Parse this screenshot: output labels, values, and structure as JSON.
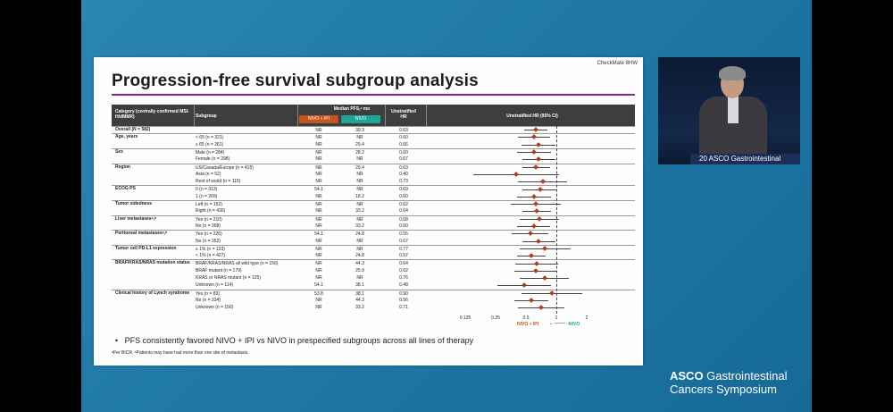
{
  "slide": {
    "badge": "CheckMate 8HW",
    "title": "Progression-free survival subgroup analysis",
    "columns": {
      "category": "Category (centrally confirmed MSI-H/dMMR)",
      "subgroup": "Subgroup",
      "median": "Median PFS,ᵃ mo",
      "arm1": "NIVO + IPI",
      "arm2": "NIVO",
      "hr": "Unstratified HR",
      "forest": "Unstratified HR (95% CI)"
    },
    "arm_colors": {
      "arm1": "#c4551f",
      "arm2": "#1ea597"
    },
    "rows": [
      {
        "cat": "Overall (N = 582)",
        "sub": "",
        "n1": "NR",
        "n2": "39.3",
        "hr": "0.63"
      },
      {
        "cat": "Age, years",
        "sub": "< 65 (n = 321)",
        "n1": "NR",
        "n2": "NR",
        "hr": "0.60"
      },
      {
        "cat": "",
        "sub": "≥ 65 (n = 261)",
        "n1": "NR",
        "n2": "29.4",
        "hr": "0.66"
      },
      {
        "cat": "Sex",
        "sub": "Male (n = 284)",
        "n1": "NR",
        "n2": "28.2",
        "hr": "0.60"
      },
      {
        "cat": "",
        "sub": "Female (n = 298)",
        "n1": "NR",
        "n2": "NR",
        "hr": "0.67"
      },
      {
        "cat": "Region",
        "sub": "US/Canada/Europe (n = 415)",
        "n1": "NR",
        "n2": "29.4",
        "hr": "0.63"
      },
      {
        "cat": "",
        "sub": "Asia (n = 52)",
        "n1": "NR",
        "n2": "NR",
        "hr": "0.40"
      },
      {
        "cat": "",
        "sub": "Rest of world (n = 115)",
        "n1": "NR",
        "n2": "NR",
        "hr": "0.73"
      },
      {
        "cat": "ECOG PS",
        "sub": "0 (n = 313)",
        "n1": "54.1",
        "n2": "NR",
        "hr": "0.69"
      },
      {
        "cat": "",
        "sub": "1 (n = 269)",
        "n1": "NR",
        "n2": "18.2",
        "hr": "0.60"
      },
      {
        "cat": "Tumor sidedness",
        "sub": "Left (n = 152)",
        "n1": "NR",
        "n2": "NR",
        "hr": "0.62"
      },
      {
        "cat": "",
        "sub": "Right (n = 430)",
        "n1": "NR",
        "n2": "33.2",
        "hr": "0.64"
      },
      {
        "cat": "Liver metastasesᵃ,ᵇ",
        "sub": "Yes (n = 210)",
        "n1": "NR",
        "n2": "NR",
        "hr": "0.68"
      },
      {
        "cat": "",
        "sub": "No (n = 368)",
        "n1": "NR",
        "n2": "33.2",
        "hr": "0.60"
      },
      {
        "cat": "Peritoneal metastasesᵃ,ᵇ",
        "sub": "Yes (n = 226)",
        "n1": "54.1",
        "n2": "24.8",
        "hr": "0.55"
      },
      {
        "cat": "",
        "sub": "No (n = 352)",
        "n1": "NR",
        "n2": "NR",
        "hr": "0.67"
      },
      {
        "cat": "Tumor cell PD-L1 expression",
        "sub": "≥ 1% (n = 133)",
        "n1": "NR",
        "n2": "NR",
        "hr": "0.77"
      },
      {
        "cat": "",
        "sub": "< 1% (n = 427)",
        "n1": "NR",
        "n2": "24.8",
        "hr": "0.57"
      },
      {
        "cat": "BRAF/KRAS/NRAS mutation status",
        "sub": "BRAF/KRAS/NRAS all wild type (n = 156)",
        "n1": "NR",
        "n2": "44.3",
        "hr": "0.64"
      },
      {
        "cat": "",
        "sub": "BRAF mutant (n = 179)",
        "n1": "NR",
        "n2": "25.9",
        "hr": "0.62"
      },
      {
        "cat": "",
        "sub": "KRAS or NRAS mutant (n = 125)",
        "n1": "NR",
        "n2": "NR",
        "hr": "0.76"
      },
      {
        "cat": "",
        "sub": "Unknown (n = 114)",
        "n1": "54.1",
        "n2": "38.1",
        "hr": "0.48"
      },
      {
        "cat": "Clinical history of Lynch syndrome",
        "sub": "Yes (n = 83)",
        "n1": "53.8",
        "n2": "38.1",
        "hr": "0.90"
      },
      {
        "cat": "",
        "sub": "No (n = 334)",
        "n1": "NR",
        "n2": "44.3",
        "hr": "0.56"
      },
      {
        "cat": "",
        "sub": "Unknown (n = 156)",
        "n1": "NR",
        "n2": "33.2",
        "hr": "0.71"
      }
    ],
    "axis": {
      "ticks": [
        "0.125",
        "0.25",
        "0.5",
        "1",
        "2"
      ],
      "favors_left": "NIVO + IPI",
      "favors_right": "NIVO",
      "arrow": "←——→"
    },
    "bullet": "PFS consistently favored NIVO + IPI vs NIVO in prespecified subgroups across all lines of therapy",
    "footnote": "ᵃPer BICR. ᵇPatients may have had more than one site of metastasis."
  },
  "chart_data": {
    "type": "scatter",
    "title": "",
    "xlabel": "Unstratified HR (95% CI)",
    "x_scale": "log2",
    "xlim": [
      0.125,
      2
    ],
    "reference_line": 1,
    "categories": [
      "Overall (N = 582)",
      "< 65 (n = 321)",
      "≥ 65 (n = 261)",
      "Male (n = 284)",
      "Female (n = 298)",
      "US/Canada/Europe (n = 415)",
      "Asia (n = 52)",
      "Rest of world (n = 115)",
      "0 (n = 313)",
      "1 (n = 269)",
      "Left (n = 152)",
      "Right (n = 430)",
      "Yes (n = 210)",
      "No (n = 368)",
      "Yes (n = 226)",
      "No (n = 352)",
      "≥ 1% (n = 133)",
      "< 1% (n = 427)",
      "BRAF/KRAS/NRAS all wild type (n = 156)",
      "BRAF mutant (n = 179)",
      "KRAS or NRAS mutant (n = 125)",
      "Unknown (n = 114)",
      "Yes (n = 83)",
      "No (n = 334)",
      "Unknown (n = 156)"
    ],
    "hr": [
      0.63,
      0.6,
      0.66,
      0.6,
      0.67,
      0.63,
      0.4,
      0.73,
      0.69,
      0.6,
      0.62,
      0.64,
      0.68,
      0.6,
      0.55,
      0.67,
      0.77,
      0.57,
      0.64,
      0.62,
      0.76,
      0.48,
      0.9,
      0.56,
      0.71
    ],
    "ci_low": [
      0.48,
      0.42,
      0.45,
      0.41,
      0.46,
      0.46,
      0.15,
      0.42,
      0.46,
      0.41,
      0.35,
      0.46,
      0.43,
      0.41,
      0.36,
      0.46,
      0.43,
      0.41,
      0.39,
      0.38,
      0.43,
      0.26,
      0.45,
      0.38,
      0.42
    ],
    "ci_high": [
      0.82,
      0.86,
      0.97,
      0.88,
      0.98,
      0.86,
      1.06,
      1.28,
      1.03,
      0.89,
      1.1,
      0.89,
      1.07,
      0.87,
      0.83,
      0.97,
      1.39,
      0.78,
      1.05,
      1.01,
      1.34,
      0.88,
      1.8,
      0.84,
      1.2
    ]
  },
  "presenter": {
    "podium_text": "20 ASCO Gastrointestinal"
  },
  "logo": {
    "line1_bold": "ASCO",
    "line1_rest": " Gastrointestinal",
    "line2": "Cancers Symposium"
  }
}
